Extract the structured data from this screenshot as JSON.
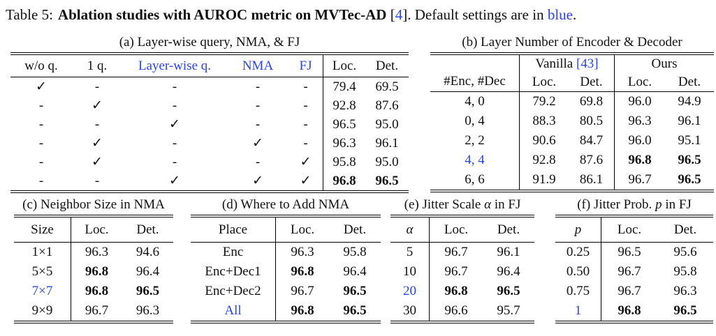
{
  "colors": {
    "accent_blue": "#2b46e2",
    "text": "#111111"
  },
  "title": {
    "label": "Table 5:",
    "bold_text": "Ablation studies with AUROC metric on MVTec-AD",
    "cite_open": "[",
    "cite_num": "4",
    "cite_close": "].",
    "tail": "Default settings are in",
    "tail_blue": "blue",
    "tail_end": "."
  },
  "panels": {
    "a": {
      "caption": "(a) Layer-wise query, NMA, & FJ",
      "headers": [
        "w/o q.",
        "1 q.",
        "Layer-wise q.",
        "NMA",
        "FJ",
        "Loc.",
        "Det."
      ],
      "rows": [
        [
          {
            "t": "✓"
          },
          {
            "t": "-"
          },
          {
            "t": "-"
          },
          {
            "t": "-"
          },
          {
            "t": "-"
          },
          {
            "t": "79.4"
          },
          {
            "t": "69.5"
          }
        ],
        [
          {
            "t": "-"
          },
          {
            "t": "✓"
          },
          {
            "t": "-"
          },
          {
            "t": "-"
          },
          {
            "t": "-"
          },
          {
            "t": "92.8"
          },
          {
            "t": "87.6"
          }
        ],
        [
          {
            "t": "-"
          },
          {
            "t": "-"
          },
          {
            "t": "✓"
          },
          {
            "t": "-"
          },
          {
            "t": "-"
          },
          {
            "t": "96.5"
          },
          {
            "t": "95.0"
          }
        ],
        [
          {
            "t": "-"
          },
          {
            "t": "✓"
          },
          {
            "t": "-"
          },
          {
            "t": "✓"
          },
          {
            "t": "-"
          },
          {
            "t": "96.3"
          },
          {
            "t": "96.1"
          }
        ],
        [
          {
            "t": "-"
          },
          {
            "t": "✓"
          },
          {
            "t": "-"
          },
          {
            "t": "-"
          },
          {
            "t": "✓"
          },
          {
            "t": "95.8"
          },
          {
            "t": "95.0"
          }
        ],
        [
          {
            "t": "-"
          },
          {
            "t": "-"
          },
          {
            "t": "✓"
          },
          {
            "t": "✓"
          },
          {
            "t": "✓"
          },
          {
            "t": "96.8",
            "b": true
          },
          {
            "t": "96.5",
            "b": true
          }
        ]
      ]
    },
    "b": {
      "caption": "(b) Layer Number of Encoder & Decoder",
      "row_header": "#Enc, #Dec",
      "group1_pre": "Vanilla ",
      "group1_cite": "[43]",
      "group2": "Ours",
      "sub_headers": [
        "Loc.",
        "Det.",
        "Loc.",
        "Det."
      ],
      "rows": [
        [
          {
            "t": "4, 0"
          },
          {
            "t": "79.2"
          },
          {
            "t": "69.8"
          },
          {
            "t": "96.0"
          },
          {
            "t": "94.9"
          }
        ],
        [
          {
            "t": "0, 4"
          },
          {
            "t": "88.3"
          },
          {
            "t": "80.5"
          },
          {
            "t": "96.3"
          },
          {
            "t": "96.1"
          }
        ],
        [
          {
            "t": "2, 2"
          },
          {
            "t": "90.6"
          },
          {
            "t": "84.7"
          },
          {
            "t": "96.0"
          },
          {
            "t": "95.1"
          }
        ],
        [
          {
            "t": "4, 4",
            "c": true
          },
          {
            "t": "92.8"
          },
          {
            "t": "87.6"
          },
          {
            "t": "96.8",
            "b": true
          },
          {
            "t": "96.5",
            "b": true
          }
        ],
        [
          {
            "t": "6, 6"
          },
          {
            "t": "91.9"
          },
          {
            "t": "86.1"
          },
          {
            "t": "96.7"
          },
          {
            "t": "96.5",
            "b": true
          }
        ]
      ]
    },
    "c": {
      "caption": "(c) Neighbor Size in NMA",
      "headers": [
        "Size",
        "Loc.",
        "Det."
      ],
      "rows": [
        [
          {
            "t": "1×1"
          },
          {
            "t": "96.3"
          },
          {
            "t": "94.6"
          }
        ],
        [
          {
            "t": "5×5"
          },
          {
            "t": "96.8",
            "b": true
          },
          {
            "t": "96.4"
          }
        ],
        [
          {
            "t": "7×7",
            "c": true
          },
          {
            "t": "96.8",
            "b": true
          },
          {
            "t": "96.5",
            "b": true
          }
        ],
        [
          {
            "t": "9×9"
          },
          {
            "t": "96.7"
          },
          {
            "t": "96.3"
          }
        ]
      ]
    },
    "d": {
      "caption": "(d) Where to Add NMA",
      "headers": [
        "Place",
        "Loc.",
        "Det."
      ],
      "rows": [
        [
          {
            "t": "Enc"
          },
          {
            "t": "96.3"
          },
          {
            "t": "95.8"
          }
        ],
        [
          {
            "t": "Enc+Dec1"
          },
          {
            "t": "96.8",
            "b": true
          },
          {
            "t": "96.4"
          }
        ],
        [
          {
            "t": "Enc+Dec2"
          },
          {
            "t": "96.7"
          },
          {
            "t": "96.5",
            "b": true
          }
        ],
        [
          {
            "t": "All",
            "c": true
          },
          {
            "t": "96.8",
            "b": true
          },
          {
            "t": "96.5",
            "b": true
          }
        ]
      ]
    },
    "e": {
      "caption_pre": "(e) Jitter Scale ",
      "caption_math": "α",
      "caption_post": " in FJ",
      "headers": [
        "α",
        "Loc.",
        "Det."
      ],
      "rows": [
        [
          {
            "t": "5"
          },
          {
            "t": "96.7"
          },
          {
            "t": "96.1"
          }
        ],
        [
          {
            "t": "10"
          },
          {
            "t": "96.7"
          },
          {
            "t": "96.4"
          }
        ],
        [
          {
            "t": "20",
            "c": true
          },
          {
            "t": "96.8",
            "b": true
          },
          {
            "t": "96.5",
            "b": true
          }
        ],
        [
          {
            "t": "30"
          },
          {
            "t": "96.6"
          },
          {
            "t": "95.7"
          }
        ]
      ]
    },
    "f": {
      "caption_pre": "(f) Jitter Prob. ",
      "caption_math": "p",
      "caption_post": " in FJ",
      "headers": [
        "p",
        "Loc.",
        "Det."
      ],
      "rows": [
        [
          {
            "t": "0.25"
          },
          {
            "t": "96.5"
          },
          {
            "t": "95.6"
          }
        ],
        [
          {
            "t": "0.50"
          },
          {
            "t": "96.7"
          },
          {
            "t": "95.8"
          }
        ],
        [
          {
            "t": "0.75"
          },
          {
            "t": "96.7"
          },
          {
            "t": "96.3"
          }
        ],
        [
          {
            "t": "1",
            "c": true
          },
          {
            "t": "96.8",
            "b": true
          },
          {
            "t": "96.5",
            "b": true
          }
        ]
      ]
    }
  }
}
